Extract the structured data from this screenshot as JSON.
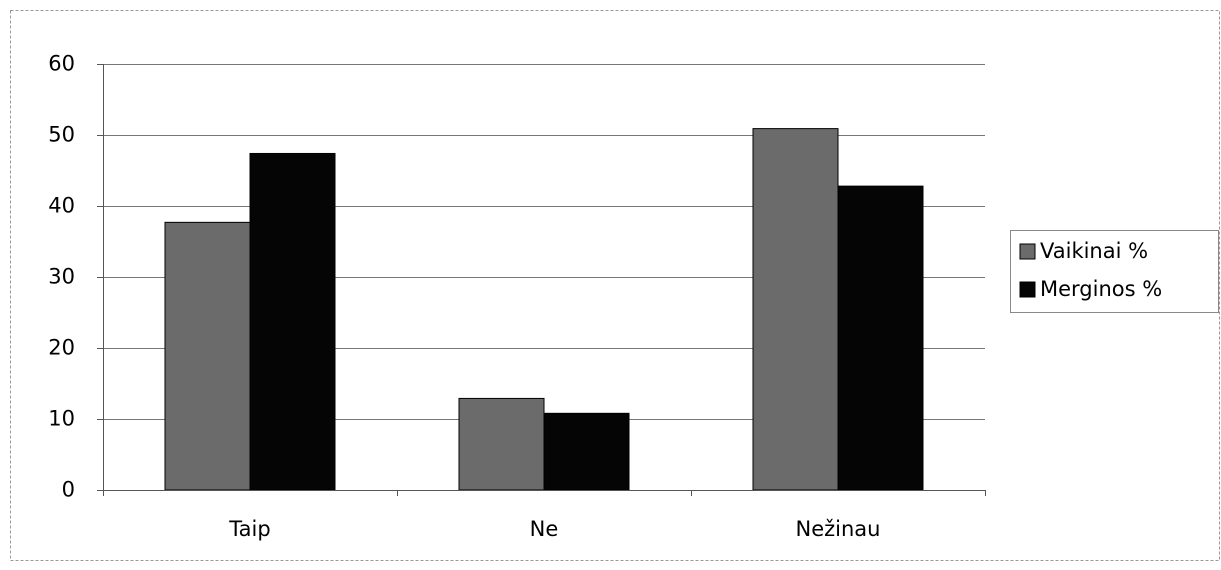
{
  "chart_data": {
    "type": "bar",
    "categories": [
      "Taip",
      "Ne",
      "Nežinau"
    ],
    "series": [
      {
        "name": "Vaikinai %",
        "color": "#6b6b6b",
        "values": [
          37.7,
          12.9,
          50.9
        ]
      },
      {
        "name": "Merginos %",
        "color": "#050505",
        "values": [
          47.4,
          10.8,
          42.8
        ]
      }
    ],
    "ylim": [
      0,
      60
    ],
    "yticks": [
      0,
      10,
      20,
      30,
      40,
      50,
      60
    ],
    "grid": true,
    "legend": "right"
  }
}
